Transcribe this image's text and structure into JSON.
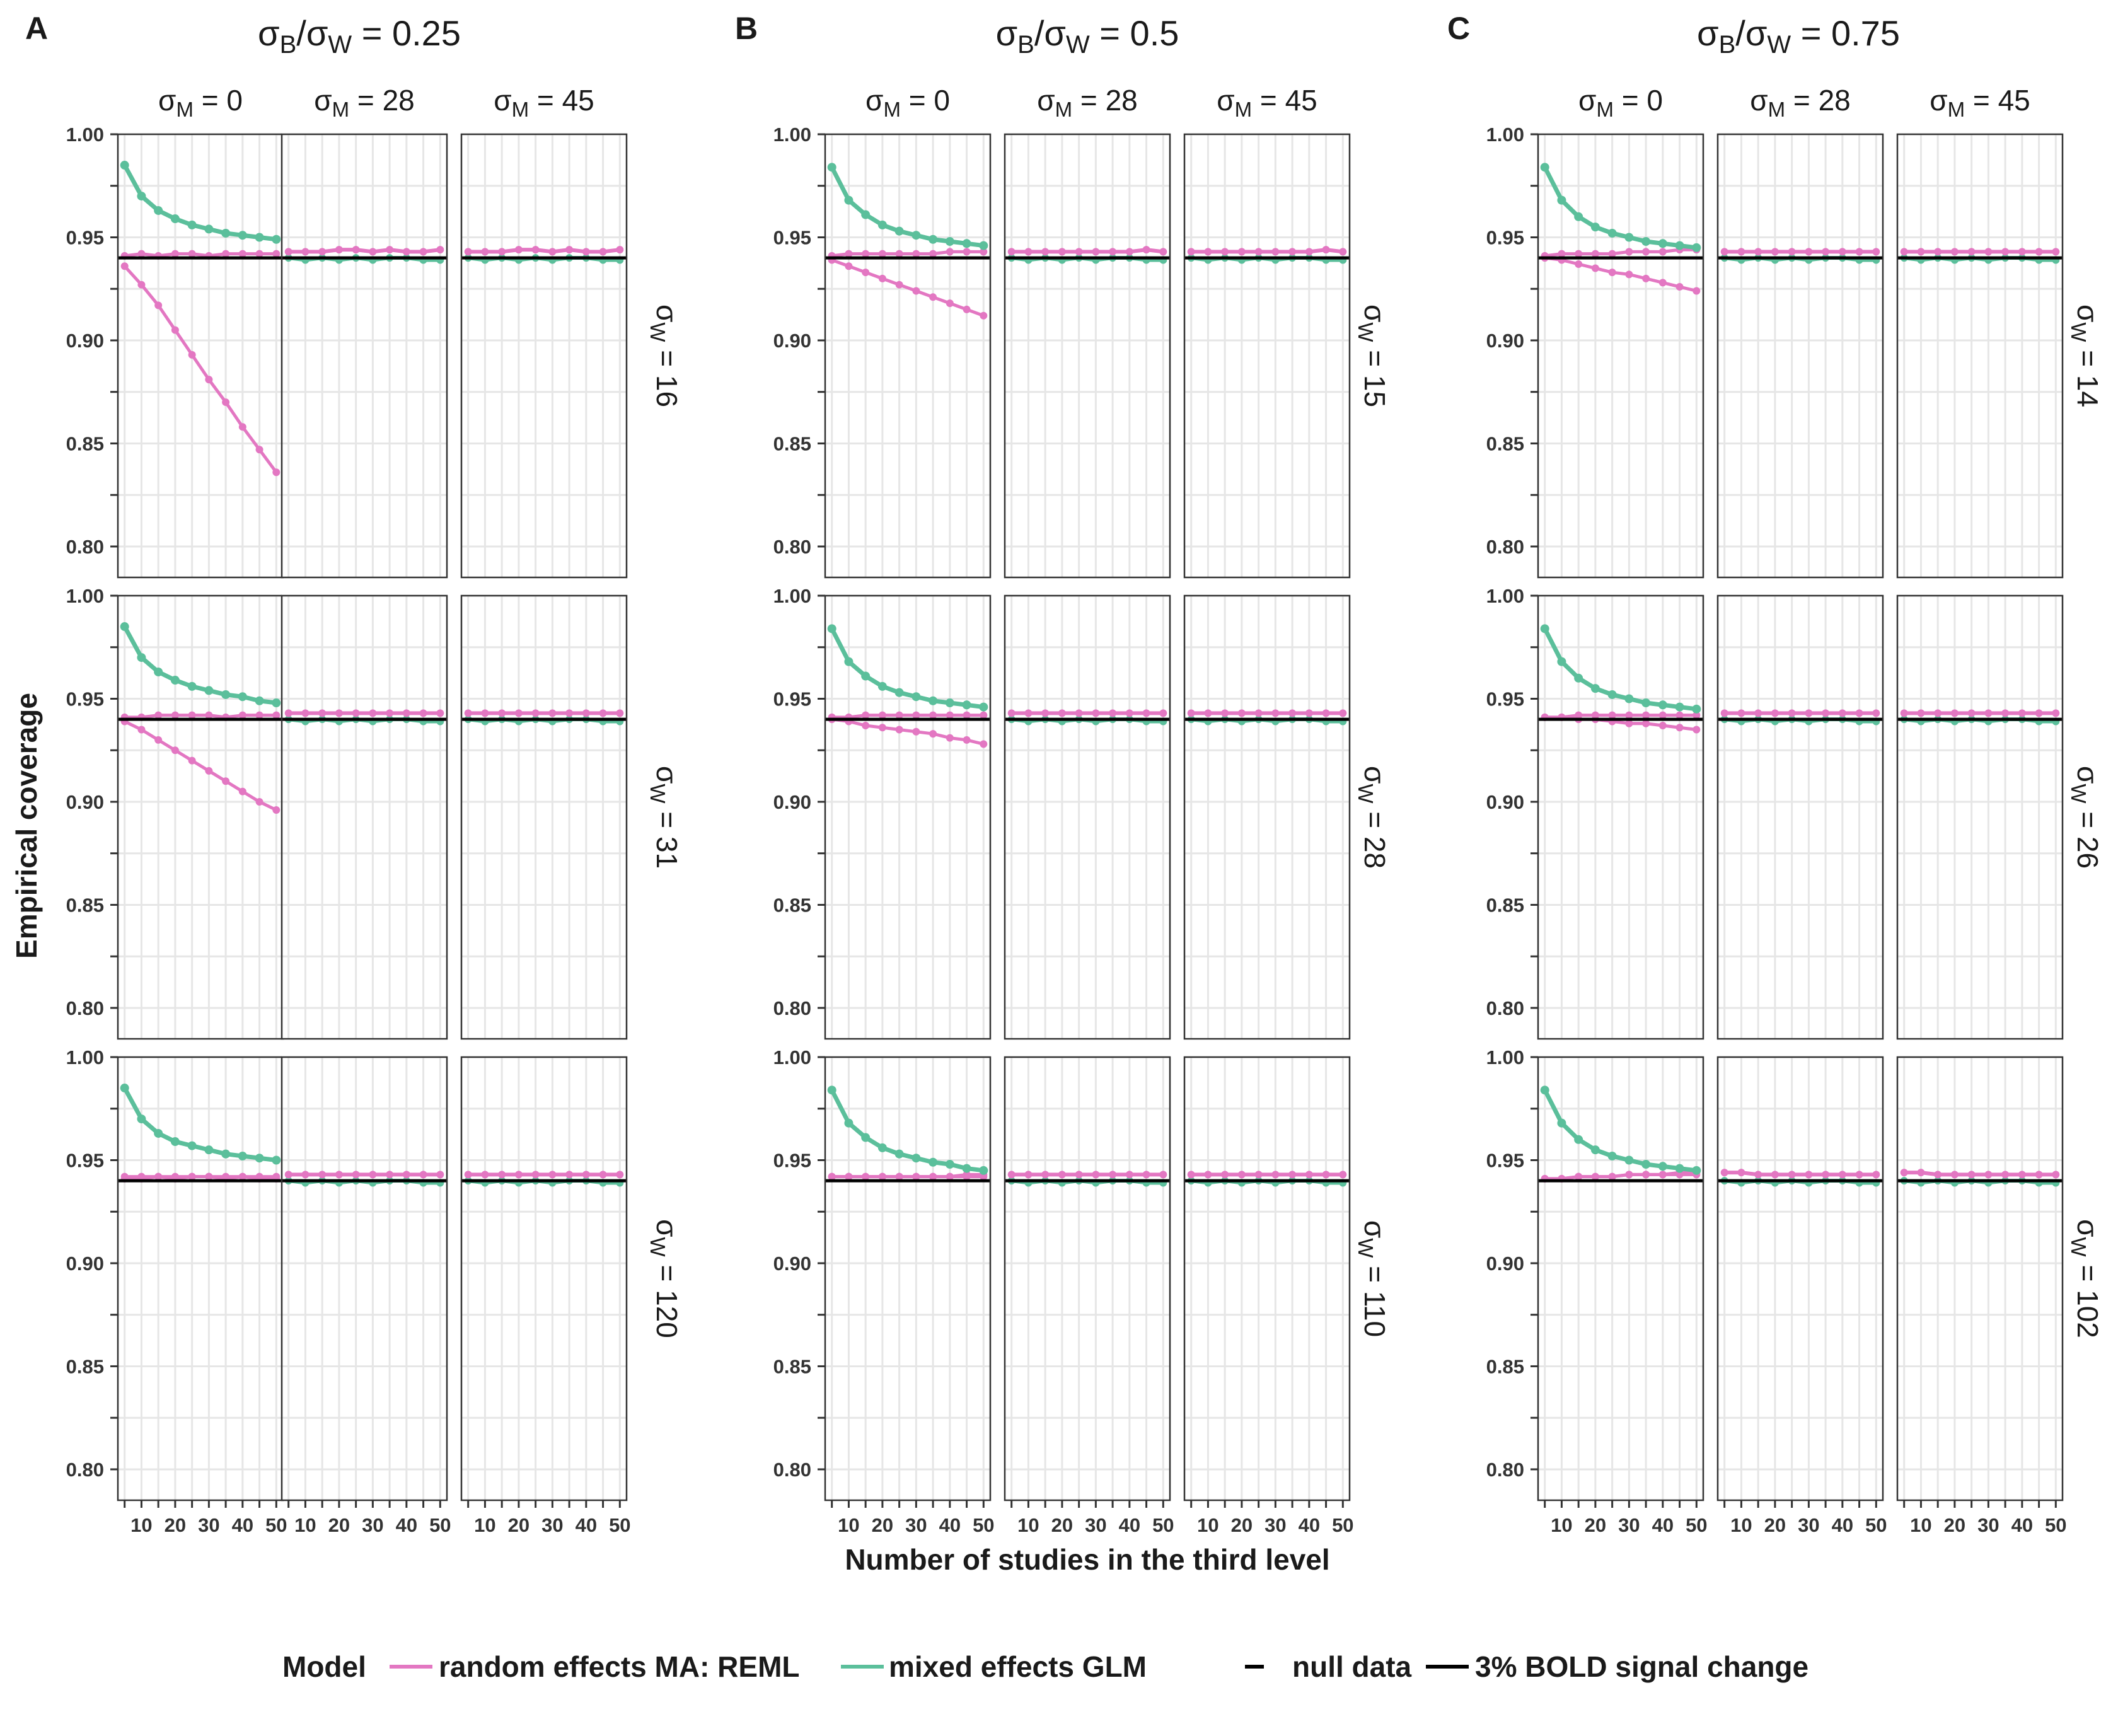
{
  "chart_data": {
    "type": "line",
    "title": "",
    "xlabel": "Number of studies in the third level",
    "ylabel": "Empirical coverage",
    "xlim": [
      3,
      52
    ],
    "ylim": [
      0.785,
      1.0
    ],
    "x_ticks": [
      10,
      20,
      30,
      40,
      50
    ],
    "y_ticks": [
      0.8,
      0.85,
      0.9,
      0.95,
      1.0
    ],
    "y_tick_labels": [
      "0.80",
      "0.85",
      "0.90",
      "0.95",
      "1.00"
    ],
    "grid": true,
    "x": [
      5,
      10,
      15,
      20,
      25,
      30,
      35,
      40,
      45,
      50
    ],
    "reference_line": 0.94,
    "legend": {
      "title": "Model",
      "position": "bottom",
      "entries": [
        {
          "label": "random effects MA: REML",
          "color": "#e377c2",
          "kind": "model"
        },
        {
          "label": "mixed effects GLM",
          "color": "#5bbf9b",
          "kind": "model"
        },
        {
          "label": "null data",
          "color": "#000000",
          "kind": "linetype-short"
        },
        {
          "label": "3% BOLD signal change",
          "color": "#000000",
          "kind": "linetype-long"
        }
      ]
    },
    "colors": {
      "reml": "#e377c2",
      "glm": "#5bbf9b",
      "reference": "#000000"
    },
    "facet_columns": [
      {
        "sym": "σ",
        "sub": "M",
        "rest": " = 0"
      },
      {
        "sym": "σ",
        "sub": "M",
        "rest": " = 28"
      },
      {
        "sym": "σ",
        "sub": "M",
        "rest": " = 45"
      }
    ],
    "panels": [
      {
        "letter": "A",
        "title": {
          "a": "σ",
          "a_sub": "B",
          "slash": "/",
          "b": "σ",
          "b_sub": "W",
          "rest": " = 0.25"
        },
        "rows": [
          {
            "strip": {
              "sym": "σ",
              "sub": "W",
              "rest": " = 16"
            },
            "series": {
              "glm_0": [
                0.985,
                0.97,
                0.963,
                0.959,
                0.956,
                0.954,
                0.952,
                0.951,
                0.95,
                0.949
              ],
              "reml_0_null": [
                0.941,
                0.942,
                0.941,
                0.942,
                0.942,
                0.941,
                0.942,
                0.942,
                0.942,
                0.942
              ],
              "reml_0_bold": [
                0.936,
                0.927,
                0.917,
                0.905,
                0.893,
                0.881,
                0.87,
                0.858,
                0.847,
                0.836
              ],
              "reml_other": [
                0.943,
                0.943,
                0.943,
                0.944,
                0.944,
                0.943,
                0.944,
                0.943,
                0.943,
                0.944
              ],
              "glm_other": [
                0.94,
                0.939,
                0.94,
                0.939,
                0.94,
                0.939,
                0.94,
                0.94,
                0.939,
                0.939
              ]
            }
          },
          {
            "strip": {
              "sym": "σ",
              "sub": "W",
              "rest": " = 31"
            },
            "series": {
              "glm_0": [
                0.985,
                0.97,
                0.963,
                0.959,
                0.956,
                0.954,
                0.952,
                0.951,
                0.949,
                0.948
              ],
              "reml_0_null": [
                0.941,
                0.941,
                0.942,
                0.942,
                0.942,
                0.942,
                0.941,
                0.942,
                0.942,
                0.942
              ],
              "reml_0_bold": [
                0.939,
                0.935,
                0.93,
                0.925,
                0.92,
                0.915,
                0.91,
                0.905,
                0.9,
                0.896
              ],
              "reml_other": [
                0.943,
                0.943,
                0.943,
                0.943,
                0.943,
                0.943,
                0.943,
                0.943,
                0.943,
                0.943
              ],
              "glm_other": [
                0.94,
                0.939,
                0.94,
                0.939,
                0.94,
                0.939,
                0.94,
                0.94,
                0.939,
                0.939
              ]
            }
          },
          {
            "strip": {
              "sym": "σ",
              "sub": "W",
              "rest": " = 120"
            },
            "series": {
              "glm_0": [
                0.985,
                0.97,
                0.963,
                0.959,
                0.957,
                0.955,
                0.953,
                0.952,
                0.951,
                0.95
              ],
              "reml_0_null": [
                0.941,
                0.941,
                0.942,
                0.941,
                0.942,
                0.942,
                0.941,
                0.942,
                0.941,
                0.941
              ],
              "reml_0_bold": [
                0.942,
                0.942,
                0.942,
                0.942,
                0.942,
                0.942,
                0.942,
                0.942,
                0.942,
                0.942
              ],
              "reml_other": [
                0.943,
                0.943,
                0.943,
                0.943,
                0.943,
                0.943,
                0.943,
                0.943,
                0.943,
                0.943
              ],
              "glm_other": [
                0.94,
                0.939,
                0.94,
                0.939,
                0.94,
                0.939,
                0.94,
                0.94,
                0.939,
                0.939
              ]
            }
          }
        ]
      },
      {
        "letter": "B",
        "title": {
          "a": "σ",
          "a_sub": "B",
          "slash": "/",
          "b": "σ",
          "b_sub": "W",
          "rest": " = 0.5"
        },
        "rows": [
          {
            "strip": {
              "sym": "σ",
              "sub": "W",
              "rest": " = 15"
            },
            "series": {
              "glm_0": [
                0.984,
                0.968,
                0.961,
                0.956,
                0.953,
                0.951,
                0.949,
                0.948,
                0.947,
                0.946
              ],
              "reml_0_null": [
                0.941,
                0.942,
                0.942,
                0.942,
                0.942,
                0.942,
                0.942,
                0.943,
                0.943,
                0.943
              ],
              "reml_0_bold": [
                0.939,
                0.936,
                0.933,
                0.93,
                0.927,
                0.924,
                0.921,
                0.918,
                0.915,
                0.912
              ],
              "reml_other": [
                0.943,
                0.943,
                0.943,
                0.943,
                0.943,
                0.943,
                0.943,
                0.943,
                0.944,
                0.943
              ],
              "glm_other": [
                0.94,
                0.939,
                0.94,
                0.939,
                0.94,
                0.939,
                0.94,
                0.94,
                0.939,
                0.939
              ]
            }
          },
          {
            "strip": {
              "sym": "σ",
              "sub": "W",
              "rest": " = 28"
            },
            "series": {
              "glm_0": [
                0.984,
                0.968,
                0.961,
                0.956,
                0.953,
                0.951,
                0.949,
                0.948,
                0.947,
                0.946
              ],
              "reml_0_null": [
                0.941,
                0.941,
                0.942,
                0.942,
                0.942,
                0.942,
                0.942,
                0.942,
                0.942,
                0.942
              ],
              "reml_0_bold": [
                0.94,
                0.939,
                0.937,
                0.936,
                0.935,
                0.934,
                0.933,
                0.931,
                0.93,
                0.928
              ],
              "reml_other": [
                0.943,
                0.943,
                0.943,
                0.943,
                0.943,
                0.943,
                0.943,
                0.943,
                0.943,
                0.943
              ],
              "glm_other": [
                0.94,
                0.939,
                0.94,
                0.939,
                0.94,
                0.939,
                0.94,
                0.94,
                0.939,
                0.939
              ]
            }
          },
          {
            "strip": {
              "sym": "σ",
              "sub": "W",
              "rest": " = 110"
            },
            "series": {
              "glm_0": [
                0.984,
                0.968,
                0.961,
                0.956,
                0.953,
                0.951,
                0.949,
                0.948,
                0.946,
                0.945
              ],
              "reml_0_null": [
                0.942,
                0.942,
                0.942,
                0.942,
                0.942,
                0.942,
                0.942,
                0.942,
                0.942,
                0.942
              ],
              "reml_0_bold": [
                0.942,
                0.942,
                0.942,
                0.942,
                0.942,
                0.942,
                0.942,
                0.942,
                0.943,
                0.943
              ],
              "reml_other": [
                0.943,
                0.943,
                0.943,
                0.943,
                0.943,
                0.943,
                0.943,
                0.943,
                0.943,
                0.943
              ],
              "glm_other": [
                0.94,
                0.939,
                0.94,
                0.939,
                0.94,
                0.939,
                0.94,
                0.94,
                0.939,
                0.939
              ]
            }
          }
        ]
      },
      {
        "letter": "C",
        "title": {
          "a": "σ",
          "a_sub": "B",
          "slash": "/",
          "b": "σ",
          "b_sub": "W",
          "rest": " = 0.75"
        },
        "rows": [
          {
            "strip": {
              "sym": "σ",
              "sub": "W",
              "rest": " = 14"
            },
            "series": {
              "glm_0": [
                0.984,
                0.968,
                0.96,
                0.955,
                0.952,
                0.95,
                0.948,
                0.947,
                0.946,
                0.945
              ],
              "reml_0_null": [
                0.941,
                0.942,
                0.942,
                0.942,
                0.942,
                0.943,
                0.943,
                0.943,
                0.944,
                0.944
              ],
              "reml_0_bold": [
                0.94,
                0.939,
                0.937,
                0.935,
                0.933,
                0.932,
                0.93,
                0.928,
                0.926,
                0.924
              ],
              "reml_other": [
                0.943,
                0.943,
                0.943,
                0.943,
                0.943,
                0.943,
                0.943,
                0.943,
                0.943,
                0.943
              ],
              "glm_other": [
                0.94,
                0.939,
                0.94,
                0.939,
                0.94,
                0.939,
                0.94,
                0.94,
                0.939,
                0.939
              ]
            }
          },
          {
            "strip": {
              "sym": "σ",
              "sub": "W",
              "rest": " = 26"
            },
            "series": {
              "glm_0": [
                0.984,
                0.968,
                0.96,
                0.955,
                0.952,
                0.95,
                0.948,
                0.947,
                0.946,
                0.945
              ],
              "reml_0_null": [
                0.941,
                0.941,
                0.942,
                0.942,
                0.942,
                0.942,
                0.942,
                0.942,
                0.942,
                0.942
              ],
              "reml_0_bold": [
                0.941,
                0.941,
                0.94,
                0.94,
                0.939,
                0.938,
                0.938,
                0.937,
                0.936,
                0.935
              ],
              "reml_other": [
                0.943,
                0.943,
                0.943,
                0.943,
                0.943,
                0.943,
                0.943,
                0.943,
                0.943,
                0.943
              ],
              "glm_other": [
                0.94,
                0.939,
                0.94,
                0.939,
                0.94,
                0.939,
                0.94,
                0.94,
                0.939,
                0.939
              ]
            }
          },
          {
            "strip": {
              "sym": "σ",
              "sub": "W",
              "rest": " = 102"
            },
            "series": {
              "glm_0": [
                0.984,
                0.968,
                0.96,
                0.955,
                0.952,
                0.95,
                0.948,
                0.947,
                0.946,
                0.945
              ],
              "reml_0_null": [
                0.941,
                0.941,
                0.942,
                0.942,
                0.942,
                0.943,
                0.943,
                0.943,
                0.943,
                0.943
              ],
              "reml_0_bold": [
                0.941,
                0.941,
                0.942,
                0.942,
                0.942,
                0.943,
                0.943,
                0.943,
                0.944,
                0.944
              ],
              "reml_other": [
                0.944,
                0.944,
                0.943,
                0.943,
                0.943,
                0.943,
                0.943,
                0.943,
                0.943,
                0.943
              ],
              "glm_other": [
                0.94,
                0.939,
                0.94,
                0.939,
                0.94,
                0.939,
                0.94,
                0.94,
                0.939,
                0.939
              ]
            }
          }
        ]
      }
    ]
  }
}
